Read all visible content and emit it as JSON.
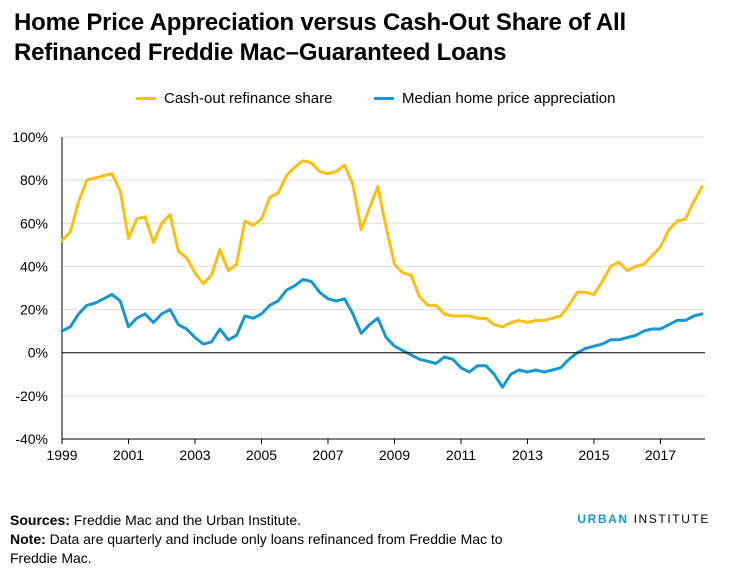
{
  "header": {
    "title_line1": "Home Price Appreciation versus Cash-Out Share of All",
    "title_line2": "Refinanced Freddie Mac–Guaranteed Loans"
  },
  "footer": {
    "sources_label": "Sources:",
    "sources_text": " Freddie Mac and the Urban Institute.",
    "note_label": "Note:",
    "note_text": " Data are quarterly and include only loans refinanced from Freddie Mac to Freddie Mac.",
    "brand_primary": "URBAN",
    "brand_secondary": " INSTITUTE"
  },
  "colors": {
    "cashout": "#fdbf11",
    "hpa": "#1696d2",
    "grid": "#dedddd",
    "zero_line": "#000000"
  },
  "chart_data": {
    "type": "line",
    "frequency": "quarterly",
    "x_start": "1999Q1",
    "x_end": "2018Q2",
    "xtick_labels": [
      "1999",
      "2001",
      "2003",
      "2005",
      "2007",
      "2009",
      "2011",
      "2013",
      "2015",
      "2017"
    ],
    "ytick_labels": [
      "-40%",
      "-20%",
      "0%",
      "20%",
      "40%",
      "60%",
      "80%",
      "100%"
    ],
    "ylim": [
      -40,
      100
    ],
    "grid": "horizontal",
    "legend_position": "top",
    "series": [
      {
        "name": "Cash-out refinance share",
        "values": [
          52,
          56,
          70,
          80,
          81,
          82,
          83,
          75,
          53,
          62,
          63,
          51,
          60,
          64,
          47,
          44,
          37,
          32,
          36,
          48,
          38,
          41,
          61,
          59,
          62,
          72,
          74,
          82,
          86,
          89,
          88,
          84,
          83,
          84,
          87,
          78,
          57,
          67,
          77,
          58,
          41,
          37,
          36,
          26,
          22,
          22,
          18,
          17,
          17,
          17,
          16,
          16,
          13,
          12,
          14,
          15,
          14,
          15,
          15,
          16,
          17,
          22,
          28,
          28,
          27,
          33,
          40,
          42,
          38,
          40,
          41,
          45,
          49,
          57,
          61,
          62,
          70,
          77
        ],
        "color": "#fdbf11"
      },
      {
        "name": "Median home price appreciation",
        "values": [
          10,
          12,
          18,
          22,
          23,
          25,
          27,
          24,
          12,
          16,
          18,
          14,
          18,
          20,
          13,
          11,
          7,
          4,
          5,
          11,
          6,
          8,
          17,
          16,
          18,
          22,
          24,
          29,
          31,
          34,
          33,
          28,
          25,
          24,
          25,
          18,
          9,
          13,
          16,
          7,
          3,
          1,
          -1,
          -3,
          -4,
          -5,
          -2,
          -3,
          -7,
          -9,
          -6,
          -6,
          -10,
          -16,
          -10,
          -8,
          -9,
          -8,
          -9,
          -8,
          -7,
          -3,
          0,
          2,
          3,
          4,
          6,
          6,
          7,
          8,
          10,
          11,
          11,
          13,
          15,
          15,
          17,
          18
        ],
        "color": "#1696d2"
      }
    ]
  }
}
